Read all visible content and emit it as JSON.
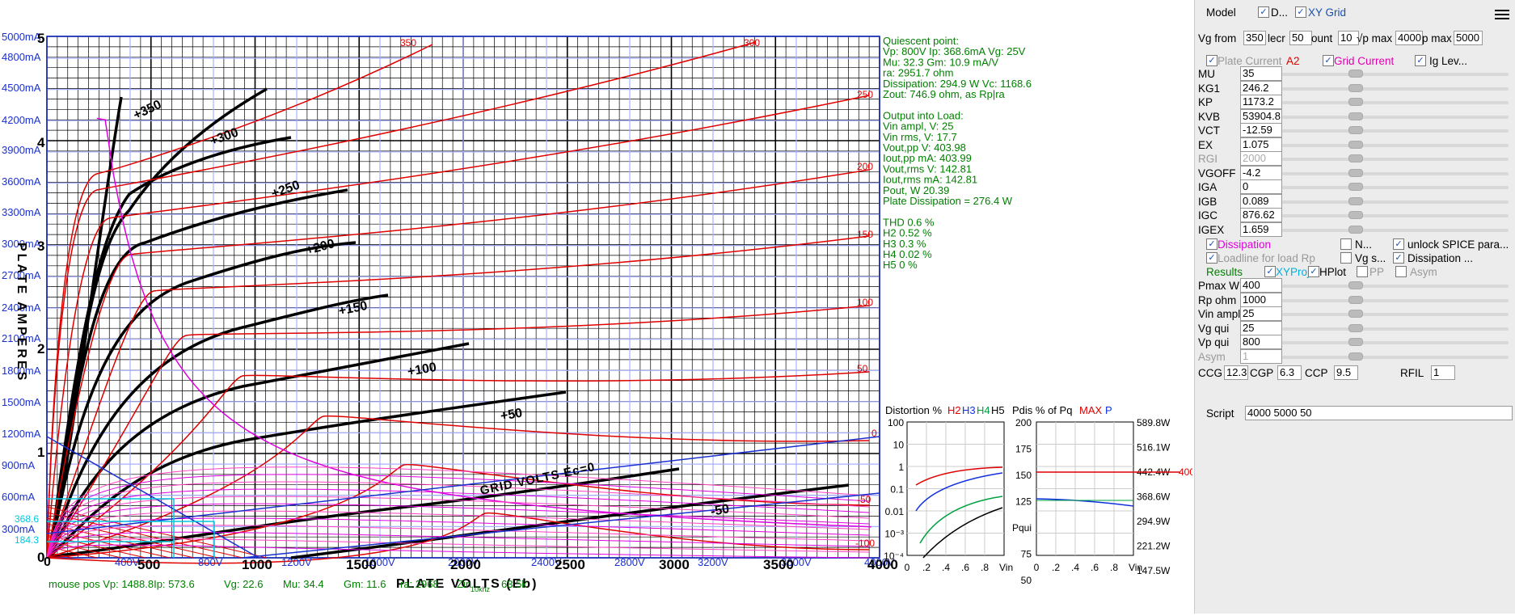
{
  "plot": {
    "y_ma_labels": [
      "5000mA",
      "4800mA",
      "4500mA",
      "4200mA",
      "3900mA",
      "3600mA",
      "3300mA",
      "3000mA",
      "2700mA",
      "2400mA",
      "2100mA",
      "1800mA",
      "1500mA",
      "1200mA",
      "900mA",
      "600mA",
      "300mA"
    ],
    "y_cyan_labels": [
      "368.6",
      "184.3"
    ],
    "y_amp_labels": [
      "5",
      "4",
      "3",
      "2",
      "1",
      "0"
    ],
    "x_v_labels": [
      "400V",
      "800V",
      "1200V",
      "1600V",
      "2000V",
      "2400V",
      "2800V",
      "3200V",
      "3600V",
      "4000V"
    ],
    "x_big_labels": [
      "500",
      "1000",
      "1500",
      "2000",
      "2500",
      "3000",
      "3500",
      "4000"
    ],
    "y_axis_title": "PLATE AMPERES",
    "x_axis_title": "PLATE VOLTS (Eb)",
    "grid_volts_label": "GRID VOLTS Ec=0",
    "curve_labels_hand": [
      "+350",
      "+300",
      "+250",
      "+200",
      "+150",
      "+100",
      "+50",
      "-50"
    ],
    "red_curve_labels": [
      "350",
      "300",
      "250",
      "200",
      "150",
      "100",
      "50",
      "0",
      "-50",
      "-100"
    ],
    "mouse_pos": "mouse pos Vp: 1488.8Ip: 573.6",
    "mouse_vg": "Vg: 22.6",
    "mouse_mu": "Mu: 34.4",
    "mouse_gm": "Gm: 11.6",
    "mouse_ra": "ra: 2968",
    "mouse_zin": "Zin",
    "mouse_zin_sub": "10khz",
    "mouse_tail": "63.5k"
  },
  "info": {
    "lines": [
      "Quiescent point:",
      "Vp: 800V  Ip: 368.6mA  Vg: 25V",
      "Mu: 32.3 Gm: 10.9 mA/V",
      " ra: 2951.7 ohm",
      "Dissipation: 294.9 W Vc: 1168.6",
      "Zout: 746.9 ohm, as Rp|ra",
      "",
      "Output into Load:",
      "Vin ampl, V: 25",
      "Vin rms,  V: 17.7",
      "Vout,pp    V: 403.98",
      "Iout,pp   mA: 403.99",
      "Vout,rms   V: 142.81",
      "Iout,rms  mA: 142.81",
      "Pout, W       20.39",
      "Plate Dissipation = 276.4 W",
      "",
      "THD 0.6 %",
      "  H2 0.52 %",
      "  H3 0.3 %",
      "  H4 0.02 %",
      "  H5 0 %"
    ]
  },
  "distortion_chart": {
    "title_prefix": "Distortion %",
    "h2": "H2",
    "h3": "H3",
    "h4": "H4",
    "h5": "H5",
    "y_ticks": [
      "100",
      "10",
      "1",
      "0.1",
      "0.01",
      "10⁻³",
      "10⁻⁴"
    ],
    "x_ticks": [
      "0",
      ".2",
      ".4",
      ".6",
      ".8"
    ],
    "x_unit": "Vin",
    "colors": {
      "h2": "#e00000",
      "h3": "#1030e0",
      "h4": "#00a040",
      "h5": "#000000"
    }
  },
  "pdis_chart": {
    "title_prefix": "Pdis % of Pq",
    "max": "MAX",
    "p": "P",
    "y_ticks": [
      "200",
      "175",
      "150",
      "125",
      "Pqui",
      "75",
      "50"
    ],
    "right_ticks": [
      "589.8W",
      "516.1W",
      "442.4W",
      "368.6W",
      "294.9W",
      "221.2W",
      "147.5W"
    ],
    "max_label": "400",
    "x_ticks": [
      "0",
      ".2",
      ".4",
      ".6",
      ".8"
    ],
    "x_unit": "Vin"
  },
  "panel": {
    "model_label": "Model",
    "model_d": "D...",
    "xy_grid": "XY Grid",
    "vg_from_label": "Vg from",
    "vg_from_val": "350",
    "decr_label": "lecr",
    "decr_val": "50",
    "count_label": "ount",
    "count_val": "10",
    "vpmax_label": "√p max",
    "vpmax_val": "4000",
    "ipmax_label": "p max",
    "ipmax_val": "5000",
    "plate_current": "Plate Current",
    "a2": "A2",
    "grid_current": "Grid Current",
    "ig_lev": "Ig Lev...",
    "params": [
      {
        "name": "MU",
        "value": "35",
        "disabled": false
      },
      {
        "name": "KG1",
        "value": "246.2",
        "disabled": false
      },
      {
        "name": "KP",
        "value": "1173.2",
        "disabled": false
      },
      {
        "name": "KVB",
        "value": "53904.8",
        "disabled": false
      },
      {
        "name": "VCT",
        "value": "-12.59",
        "disabled": false
      },
      {
        "name": "EX",
        "value": "1.075",
        "disabled": false
      },
      {
        "name": "RGI",
        "value": "2000",
        "disabled": true
      },
      {
        "name": "VGOFF",
        "value": "-4.2",
        "disabled": false
      },
      {
        "name": "IGA",
        "value": "0",
        "disabled": false
      },
      {
        "name": "IGB",
        "value": "0.089",
        "disabled": false
      },
      {
        "name": "IGC",
        "value": "876.62",
        "disabled": false
      },
      {
        "name": "IGEX",
        "value": "1.659",
        "disabled": false
      }
    ],
    "dissipation": "Dissipation",
    "n_label": "N...",
    "unlock_spice": "unlock SPICE para...",
    "loadline": "Loadline for load Rp",
    "vg_s": "Vg s...",
    "dissipation2": "Dissipation ...",
    "results": "Results",
    "xyproj": "XYProj",
    "hplot": "HPlot",
    "pp": "PP",
    "asym_cb": "Asym",
    "load_params": [
      {
        "name": "Pmax W",
        "value": "400",
        "disabled": false
      },
      {
        "name": "Rp ohm",
        "value": "1000",
        "disabled": false
      },
      {
        "name": "Vin ampl",
        "value": "25",
        "disabled": false
      },
      {
        "name": "Vg qui",
        "value": "25",
        "disabled": false
      },
      {
        "name": "Vp qui",
        "value": "800",
        "disabled": false
      },
      {
        "name": "Asym",
        "value": "1",
        "disabled": true
      }
    ],
    "ccg_label": "CCG",
    "ccg_val": "12.3",
    "cgp_label": "CGP",
    "cgp_val": "6.3",
    "ccp_label": "CCP",
    "ccp_val": "9.5",
    "rfil_label": "RFIL",
    "rfil_val": "1",
    "script_label": "Script",
    "script_val": "4000 5000 50",
    "colors": {
      "magenta": "#e000e0",
      "red": "#e00000",
      "green": "#008000",
      "blue": "#1a4fb0"
    }
  }
}
